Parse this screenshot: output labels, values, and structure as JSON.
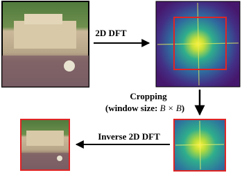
{
  "labels": {
    "forward": "2D DFT",
    "crop_title": "Cropping",
    "crop_window": [
      "(window size: ",
      "B",
      " × ",
      "B",
      ")"
    ],
    "inverse": "Inverse 2D DFT"
  }
}
